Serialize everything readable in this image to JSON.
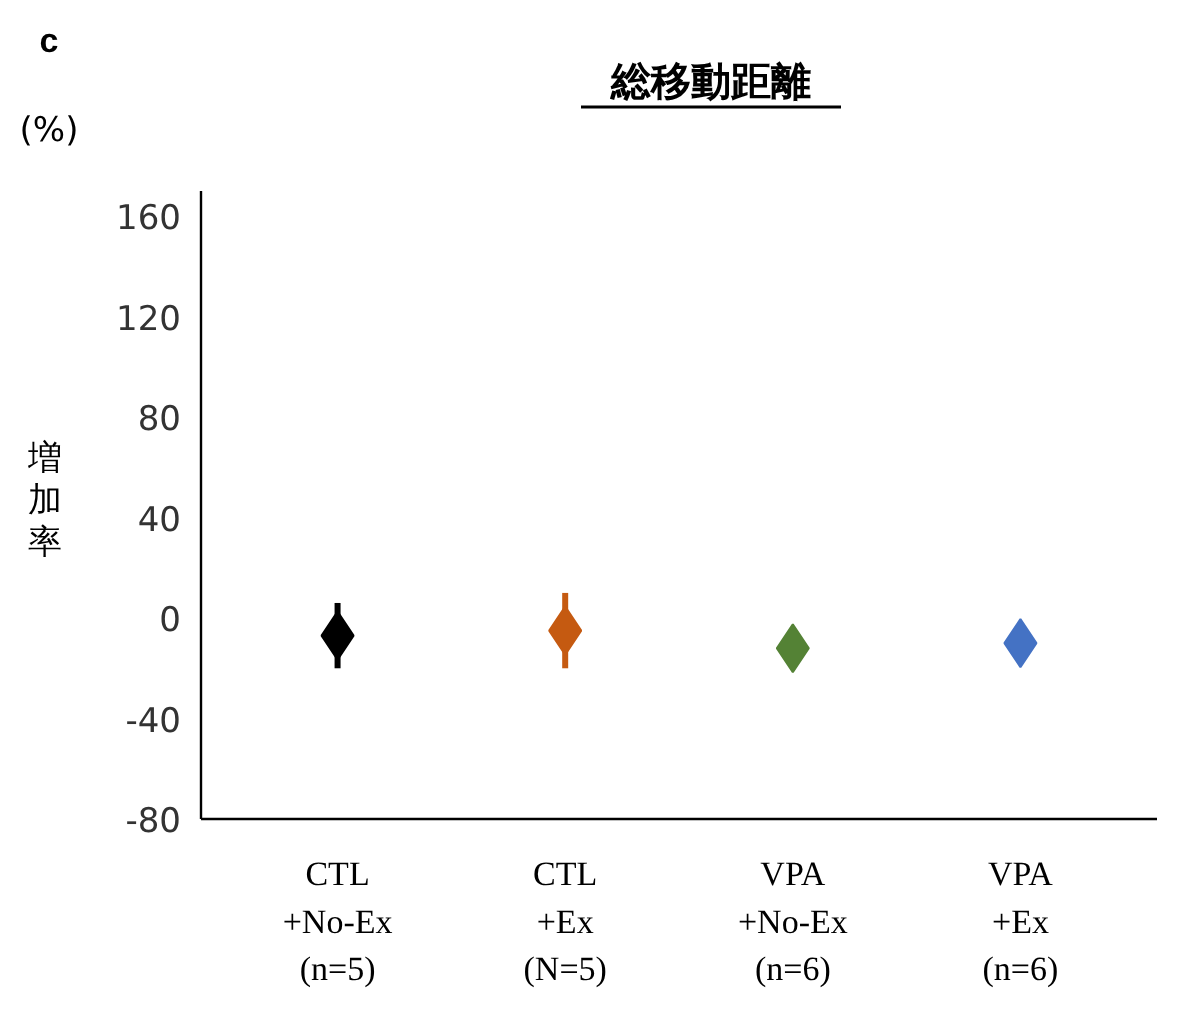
{
  "chart_data": {
    "type": "scatter",
    "title": "総移動距離",
    "ylabel": "増加率",
    "annotations": [
      "c",
      "(%)"
    ],
    "categories": [
      "CTL\n+No-Ex\n(n=5)",
      "CTL\n+Ex\n(N=5)",
      "VPA\n+No-Ex\n(n=6)",
      "VPA\n+Ex\n(n=6)"
    ],
    "values": [
      -7,
      -5,
      -12,
      -10
    ],
    "errors": [
      13,
      15,
      null,
      null
    ],
    "colors": [
      "#000000",
      "#c55a11",
      "#548235",
      "#4472c4"
    ],
    "ylim": [
      -80,
      170
    ],
    "yticks": [
      -80,
      -40,
      0,
      40,
      80,
      120,
      160
    ],
    "marker": "diamond",
    "grid": false
  }
}
